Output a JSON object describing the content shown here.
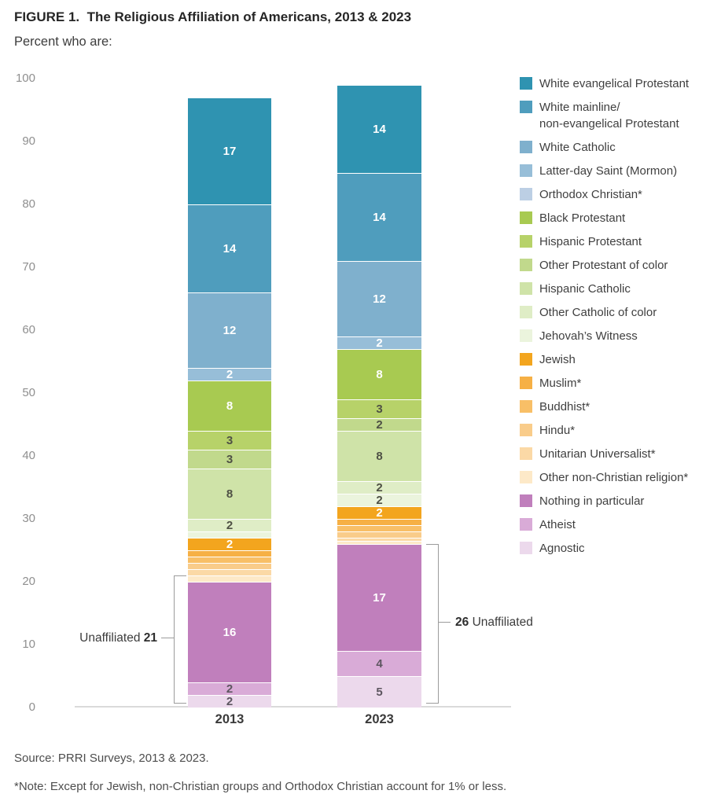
{
  "title": "FIGURE 1.  The Religious Affiliation of Americans, 2013 & 2023",
  "subtitle": "Percent who are:",
  "source": "Source: PRRI Surveys, 2013 & 2023.",
  "note": "*Note: Except for Jewish, non-Christian groups and Orthodox Christian account for 1% or less.",
  "chart_data": {
    "type": "bar",
    "stacked": true,
    "title": "The Religious Affiliation of Americans, 2013 & 2023",
    "xlabel": "",
    "ylabel": "Percent who are:",
    "categories": [
      "2013",
      "2023"
    ],
    "totals": [
      97,
      99
    ],
    "ylim": [
      0,
      100
    ],
    "yticks": [
      0,
      10,
      20,
      30,
      40,
      50,
      60,
      70,
      80,
      90,
      100
    ],
    "grid": false,
    "legend_position": "right",
    "label_min_value": 2,
    "series": [
      {
        "name": "White evangelical Protestant",
        "legend_label": "White evangelical Protestant",
        "color": "#2f93b1",
        "label_color": "#ffffff",
        "values": [
          17,
          14
        ]
      },
      {
        "name": "White mainline/ non-evangelical Protestant",
        "legend_label": "White mainline/\nnon-evangelical Protestant",
        "color": "#4f9dbd",
        "label_color": "#ffffff",
        "values": [
          14,
          14
        ]
      },
      {
        "name": "White Catholic",
        "legend_label": "White Catholic",
        "color": "#7fb0cd",
        "label_color": "#ffffff",
        "values": [
          12,
          12
        ]
      },
      {
        "name": "Latter-day Saint (Mormon)",
        "legend_label": "Latter-day Saint (Mormon)",
        "color": "#97bed8",
        "label_color": "#ffffff",
        "values": [
          2,
          2
        ]
      },
      {
        "name": "Orthodox Christian*",
        "legend_label": "Orthodox Christian*",
        "color": "#bccfe4",
        "label_color": "#4f5145",
        "values": [
          0,
          0
        ]
      },
      {
        "name": "Black Protestant",
        "legend_label": "Black Protestant",
        "color": "#a8ca51",
        "label_color": "#ffffff",
        "values": [
          8,
          8
        ]
      },
      {
        "name": "Hispanic Protestant",
        "legend_label": "Hispanic Protestant",
        "color": "#b7d269",
        "label_color": "#4f5145",
        "values": [
          3,
          3
        ]
      },
      {
        "name": "Other Protestant of color",
        "legend_label": "Other Protestant of color",
        "color": "#c1d98c",
        "label_color": "#4f5145",
        "values": [
          3,
          2
        ]
      },
      {
        "name": "Hispanic Catholic",
        "legend_label": "Hispanic Catholic",
        "color": "#cfe3a8",
        "label_color": "#4f5145",
        "values": [
          8,
          8
        ]
      },
      {
        "name": "Other Catholic of color",
        "legend_label": "Other Catholic of color",
        "color": "#dfedc6",
        "label_color": "#4f5145",
        "values": [
          2,
          2
        ]
      },
      {
        "name": "Jehovah's Witness",
        "legend_label": "Jehovah’s Witness",
        "color": "#ebf4dd",
        "label_color": "#4f5145",
        "values": [
          1,
          2
        ]
      },
      {
        "name": "Jewish",
        "legend_label": "Jewish",
        "color": "#f3a51e",
        "label_color": "#ffffff",
        "values": [
          2,
          2
        ]
      },
      {
        "name": "Muslim*",
        "legend_label": "Muslim*",
        "color": "#f6b045",
        "label_color": "#ffffff",
        "values": [
          1,
          1
        ]
      },
      {
        "name": "Buddhist*",
        "legend_label": "Buddhist*",
        "color": "#f8bf67",
        "label_color": "#4f5145",
        "values": [
          1,
          1
        ]
      },
      {
        "name": "Hindu*",
        "legend_label": "Hindu*",
        "color": "#f9cc8a",
        "label_color": "#4f5145",
        "values": [
          1,
          1
        ]
      },
      {
        "name": "Unitarian Universalist*",
        "legend_label": "Unitarian Universalist*",
        "color": "#fbd9a6",
        "label_color": "#4f5145",
        "values": [
          1,
          0.5
        ]
      },
      {
        "name": "Other non-Christian religion*",
        "legend_label": "Other non-Christian religion*",
        "color": "#fde9c8",
        "label_color": "#4f5145",
        "values": [
          1,
          0.5
        ]
      },
      {
        "name": "Nothing in particular",
        "legend_label": "Nothing in particular",
        "color": "#c07fbc",
        "label_color": "#ffffff",
        "values": [
          16,
          17
        ]
      },
      {
        "name": "Atheist",
        "legend_label": "Atheist",
        "color": "#d9abd7",
        "label_color": "#5d5660",
        "values": [
          2,
          4
        ]
      },
      {
        "name": "Agnostic",
        "legend_label": "Agnostic",
        "color": "#ecd9ec",
        "label_color": "#5d5660",
        "values": [
          2,
          5
        ]
      }
    ],
    "annotations": [
      {
        "category": "2013",
        "side": "left",
        "label": "Unaffiliated",
        "value": "21",
        "span": [
          0,
          21
        ]
      },
      {
        "category": "2023",
        "side": "right",
        "label": "Unaffiliated",
        "value": "26",
        "span": [
          0,
          26
        ]
      }
    ]
  }
}
